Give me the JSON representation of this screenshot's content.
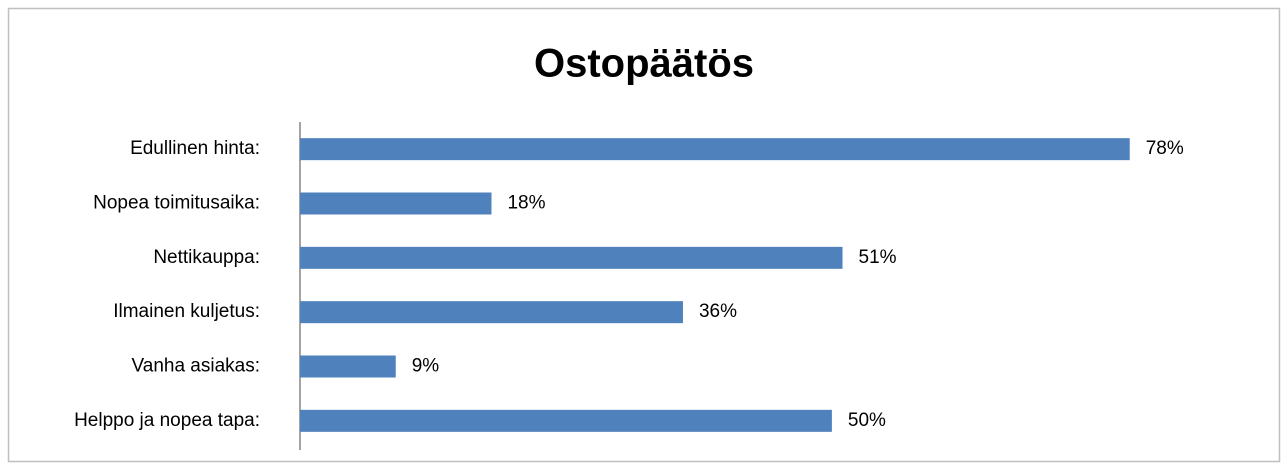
{
  "chart_data": {
    "type": "barh",
    "title": "Ostopäätös",
    "categories": [
      "Edullinen hinta:",
      "Nopea toimitusaika:",
      "Nettikauppa:",
      "Ilmainen kuljetus:",
      "Vanha asiakas:",
      "Helppo ja nopea tapa:"
    ],
    "values": [
      78,
      18,
      51,
      36,
      9,
      50
    ],
    "value_labels": [
      "78%",
      "18%",
      "51%",
      "36%",
      "9%",
      "50%"
    ],
    "color": "#4f81bd",
    "xlim": [
      0,
      80
    ]
  }
}
